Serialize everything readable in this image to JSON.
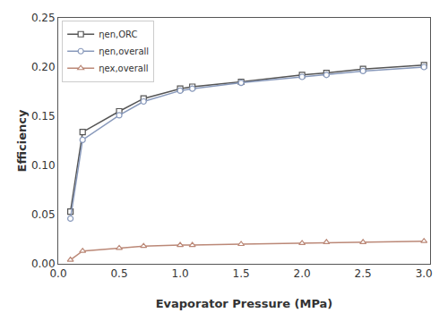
{
  "chart_data": {
    "type": "line",
    "xlabel": "Evaporator Pressure (MPa)",
    "ylabel": "Efficiency",
    "x": [
      0.1,
      0.2,
      0.5,
      0.7,
      1.0,
      1.1,
      1.5,
      2.0,
      2.2,
      2.5,
      3.0
    ],
    "series": [
      {
        "name": "ηen,ORC",
        "color": "#555555",
        "marker": "square",
        "values": [
          0.053,
          0.134,
          0.155,
          0.168,
          0.178,
          0.18,
          0.185,
          0.192,
          0.194,
          0.198,
          0.202
        ]
      },
      {
        "name": "ηen,overall",
        "color": "#8899bb",
        "marker": "circle",
        "values": [
          0.046,
          0.126,
          0.151,
          0.165,
          0.176,
          0.178,
          0.184,
          0.19,
          0.192,
          0.196,
          0.2
        ]
      },
      {
        "name": "ηex,overall",
        "color": "#bb8877",
        "marker": "triangle",
        "values": [
          0.004,
          0.013,
          0.016,
          0.018,
          0.019,
          0.019,
          0.02,
          0.021,
          0.022,
          0.022,
          0.023
        ]
      }
    ],
    "xlim": [
      0,
      3.05
    ],
    "ylim": [
      0,
      0.25
    ],
    "xticks": [
      {
        "value": 0,
        "label": "0.0"
      },
      0.5,
      {
        "value": 1.0,
        "label": "1.0"
      },
      1.5,
      {
        "value": 2.0,
        "label": "2.0"
      },
      2.5,
      {
        "value": 3.0,
        "label": "3.0"
      }
    ],
    "yticks": [
      {
        "value": 0,
        "label": "0.00"
      },
      0.05,
      {
        "value": 0.1,
        "label": "0.10"
      },
      0.15,
      {
        "value": 0.2,
        "label": "0.20"
      },
      0.25
    ],
    "grid": false,
    "legend": "upper left"
  }
}
